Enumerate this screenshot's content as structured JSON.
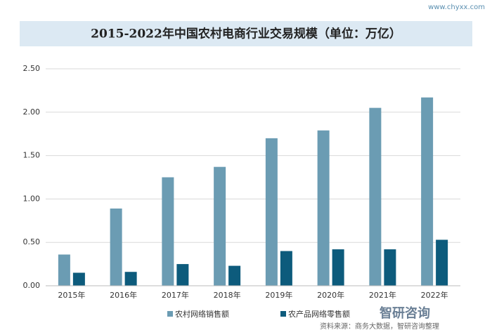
{
  "chart_data": {
    "type": "bar",
    "title": "2015-2022年中国农村电商行业交易规模（单位：万亿）",
    "website": "www.chyxx.com",
    "brand": "智研咨询",
    "source": "资料来源：商务大数据，智研咨询整理",
    "categories": [
      "2015年",
      "2016年",
      "2017年",
      "2018年",
      "2019年",
      "2020年",
      "2021年",
      "2022年"
    ],
    "series": [
      {
        "name": "农村网络销售额",
        "color": "#6b9cb3",
        "values": [
          0.36,
          0.89,
          1.25,
          1.37,
          1.7,
          1.79,
          2.05,
          2.17
        ]
      },
      {
        "name": "农产品网络零售额",
        "color": "#0d5b7c",
        "values": [
          0.15,
          0.16,
          0.25,
          0.23,
          0.4,
          0.42,
          0.42,
          0.53
        ]
      }
    ],
    "ylim": [
      0,
      2.5
    ],
    "yticks": [
      {
        "value": 0,
        "label": "0.00"
      },
      {
        "value": 0.5,
        "label": "0.50"
      },
      {
        "value": 1,
        "label": "1.00"
      },
      {
        "value": 1.5,
        "label": "1.50"
      },
      {
        "value": 2,
        "label": "2.00"
      },
      {
        "value": 2.5,
        "label": "2.50"
      }
    ],
    "grid": true
  }
}
